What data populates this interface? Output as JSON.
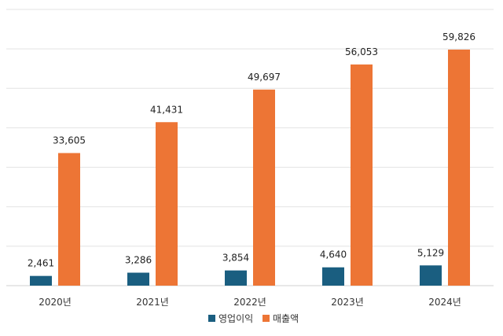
{
  "chart_data": {
    "type": "bar",
    "categories": [
      "2020년",
      "2021년",
      "2022년",
      "2023년",
      "2024년"
    ],
    "series": [
      {
        "name": "영업이익",
        "values": [
          2461,
          3286,
          3854,
          4640,
          5129
        ],
        "labels": [
          "2,461",
          "3,286",
          "3,854",
          "4,640",
          "5,129"
        ],
        "color": "#1a5e80"
      },
      {
        "name": "매출액",
        "values": [
          33605,
          41431,
          49697,
          56053,
          59826
        ],
        "labels": [
          "33,605",
          "41,431",
          "49,697",
          "56,053",
          "59,826"
        ],
        "color": "#ed7535"
      }
    ],
    "title": "",
    "xlabel": "",
    "ylabel": "",
    "ylim": [
      0,
      70000
    ],
    "grid": true,
    "legend": "bottom-center"
  },
  "colors": {
    "grid": "#e3e3e3",
    "axis": "#d0d0d0"
  }
}
